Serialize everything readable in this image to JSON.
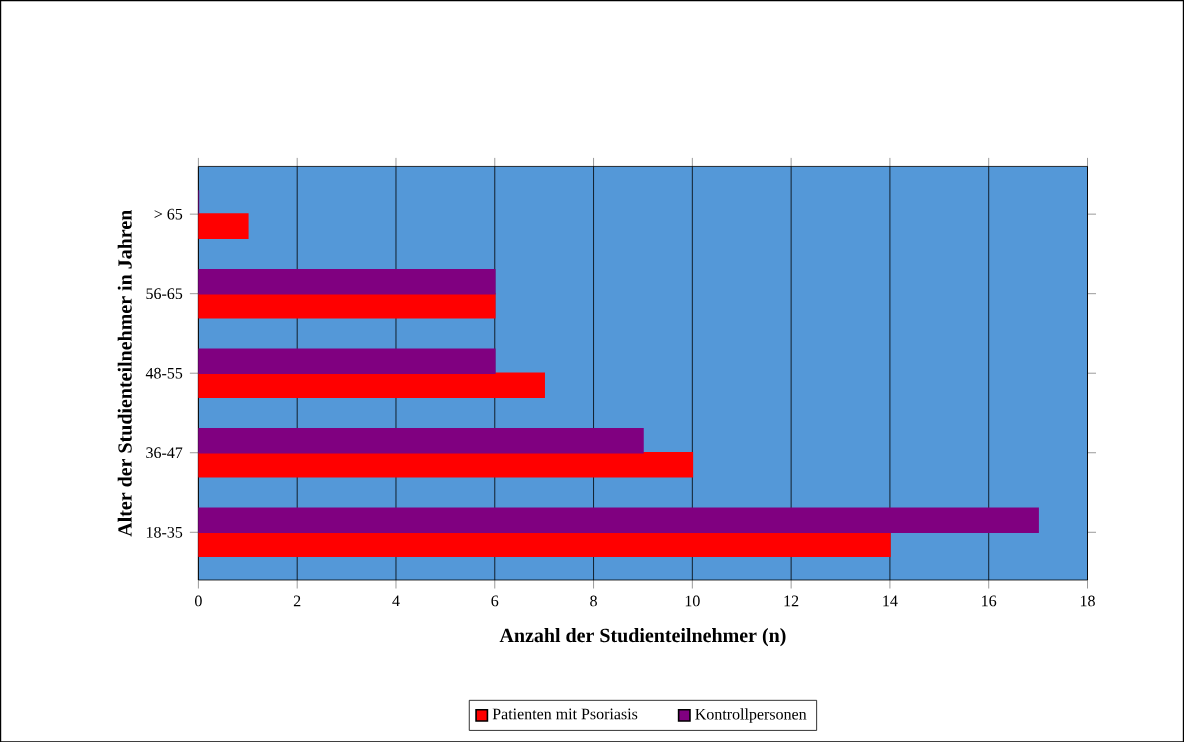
{
  "chart_data": {
    "type": "bar",
    "orientation": "horizontal",
    "categories": [
      "> 65",
      "56-65",
      "48-55",
      "36-47",
      "18-35"
    ],
    "series": [
      {
        "name": "Patienten mit Psoriasis",
        "color": "#ff0000",
        "values": [
          1,
          6,
          7,
          10,
          14
        ]
      },
      {
        "name": "Kontrollpersonen",
        "color": "#800080",
        "values": [
          0,
          6,
          6,
          9,
          17
        ]
      }
    ],
    "xlabel": "Anzahl der Studienteilnehmer (n)",
    "ylabel": "Alter der Studienteilnehmer in Jahren",
    "xlim": [
      0,
      18
    ],
    "xticks": [
      0,
      2,
      4,
      6,
      8,
      10,
      12,
      14,
      16,
      18
    ],
    "grid": "x",
    "legend": "bottom"
  }
}
